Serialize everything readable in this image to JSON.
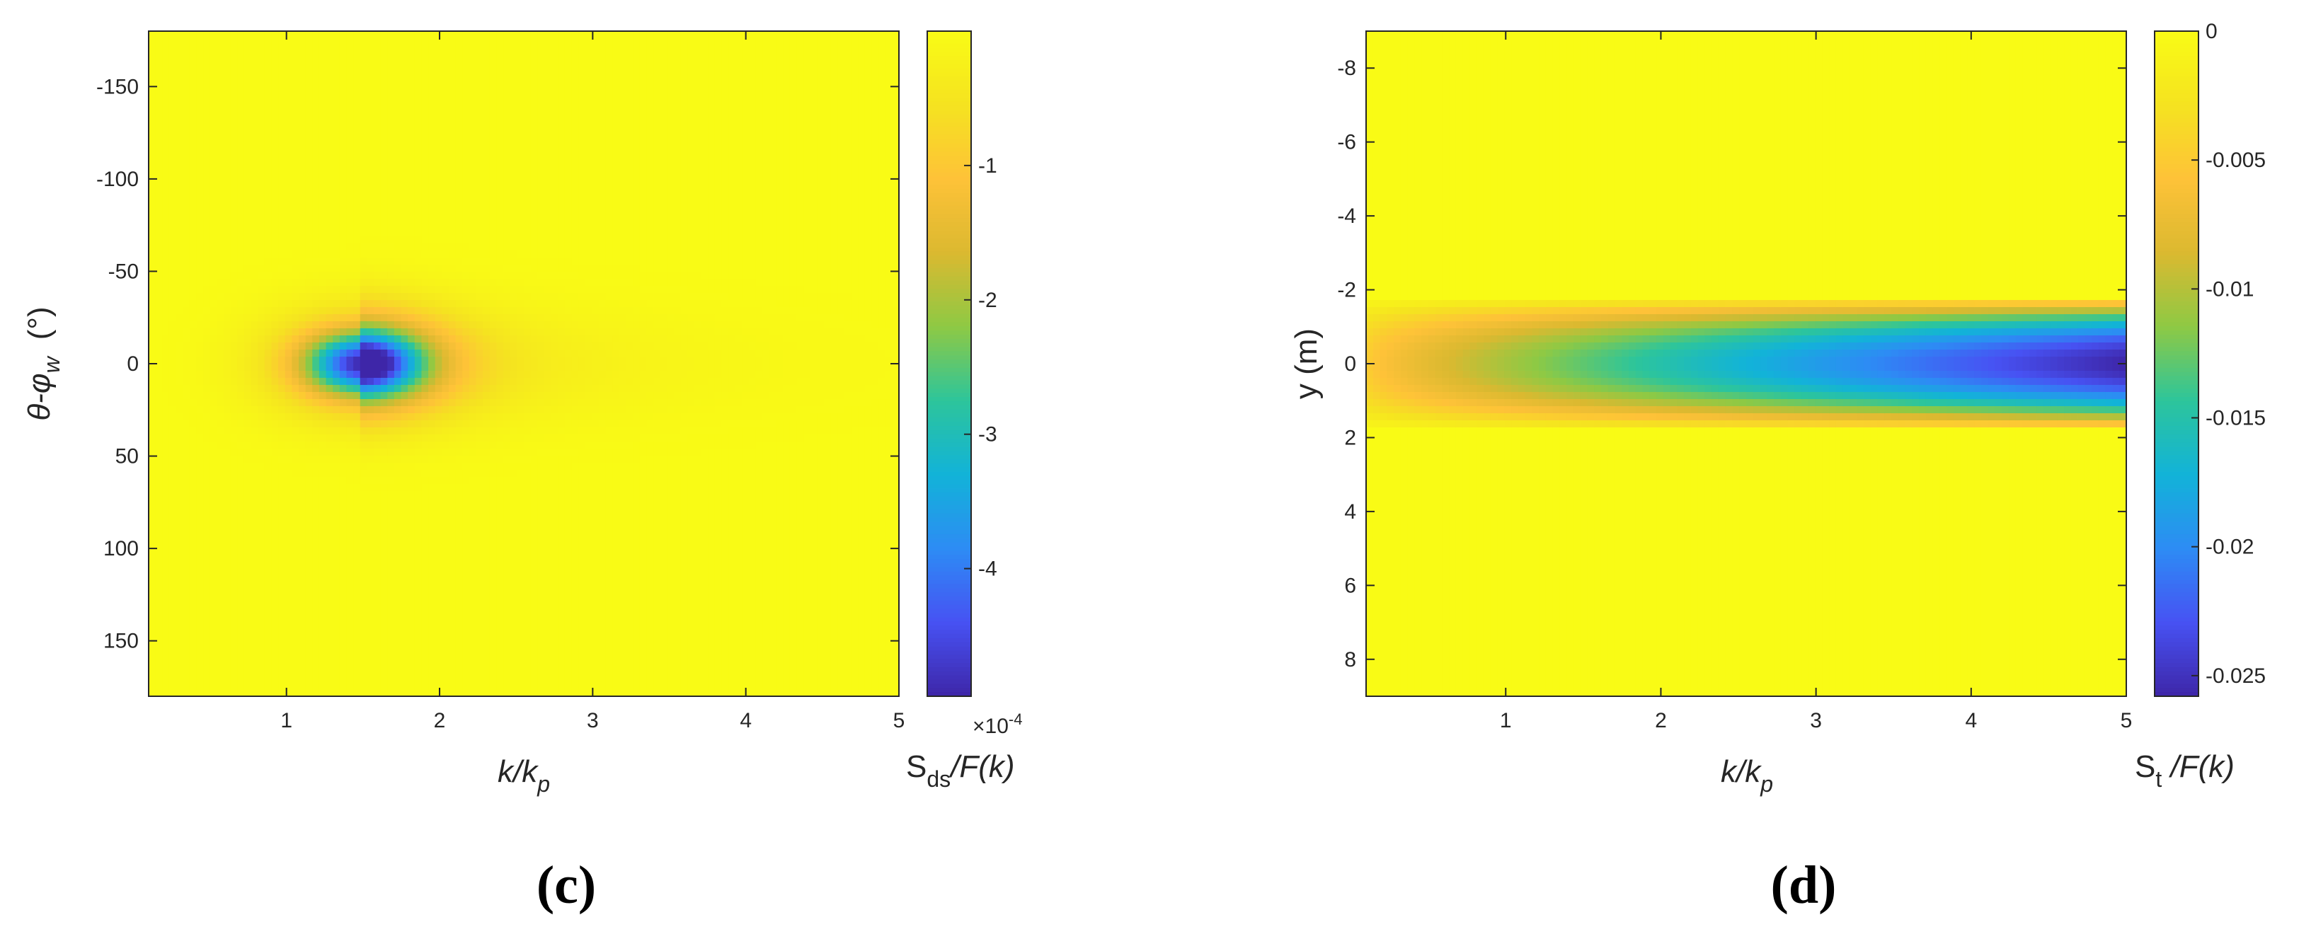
{
  "colormap": [
    "#3e26a8",
    "#4752f3",
    "#2d8cf4",
    "#12b3d8",
    "#2dc59b",
    "#8ec944",
    "#dbb930",
    "#fec238",
    "#f5e320",
    "#f9fb15"
  ],
  "chart_data": [
    {
      "type": "heatmap",
      "panel_label": "(c)",
      "xlabel": {
        "main": "k/k",
        "sub": "p"
      },
      "ylabel": {
        "main": "θ-φ",
        "sub": "w",
        "unit": "(°)"
      },
      "xlim": [
        0.1,
        5
      ],
      "ylim": [
        -180,
        180
      ],
      "y_reversed": true,
      "xticks": [
        1,
        2,
        3,
        4,
        5
      ],
      "xtick_labels": [
        "1",
        "2",
        "3",
        "4",
        "5"
      ],
      "yticks": [
        -150,
        -100,
        -50,
        0,
        50,
        100,
        150
      ],
      "ytick_labels": [
        "-150",
        "-100",
        "-50",
        "0",
        "50",
        "100",
        "150"
      ],
      "colorbar": {
        "label": {
          "main": "S",
          "sub": "ds",
          "rest": "/F(k)"
        },
        "clim": [
          -4.95,
          0
        ],
        "ticks": [
          -1,
          -2,
          -3,
          -4
        ],
        "tick_labels": [
          "-1",
          "-2",
          "-3",
          "-4"
        ],
        "exponent": {
          "base": "×10",
          "power": "-4"
        }
      },
      "field": {
        "description_values": "minimum near k/kp = 1.5, θ-φw = 0",
        "peak_x": 1.5,
        "peak_y": 0,
        "min_value": -4.95
      }
    },
    {
      "type": "heatmap",
      "panel_label": "(d)",
      "xlabel": {
        "main": "k/k",
        "sub": "p"
      },
      "ylabel": {
        "main": "y (m)"
      },
      "xlim": [
        0.1,
        5
      ],
      "ylim": [
        -9,
        9
      ],
      "y_reversed": true,
      "xticks": [
        1,
        2,
        3,
        4,
        5
      ],
      "xtick_labels": [
        "1",
        "2",
        "3",
        "4",
        "5"
      ],
      "yticks": [
        -8,
        -6,
        -4,
        -2,
        0,
        2,
        4,
        6,
        8
      ],
      "ytick_labels": [
        "-8",
        "-6",
        "-4",
        "-2",
        "0",
        "2",
        "4",
        "6",
        "8"
      ],
      "colorbar": {
        "label": {
          "main": "S",
          "sub": "t",
          "rest": " /F(k)"
        },
        "clim": [
          -0.0258,
          0
        ],
        "ticks": [
          0,
          -0.005,
          -0.01,
          -0.015,
          -0.02,
          -0.025
        ],
        "tick_labels": [
          "0",
          "-0.005",
          "-0.01",
          "-0.015",
          "-0.02",
          "-0.025"
        ]
      },
      "field": {
        "description_values": "band about y = 0, deepening with k/kp; minimum at k/kp = 5",
        "band_halfwidth_m": 1.8,
        "min_value": -0.0258
      }
    }
  ]
}
